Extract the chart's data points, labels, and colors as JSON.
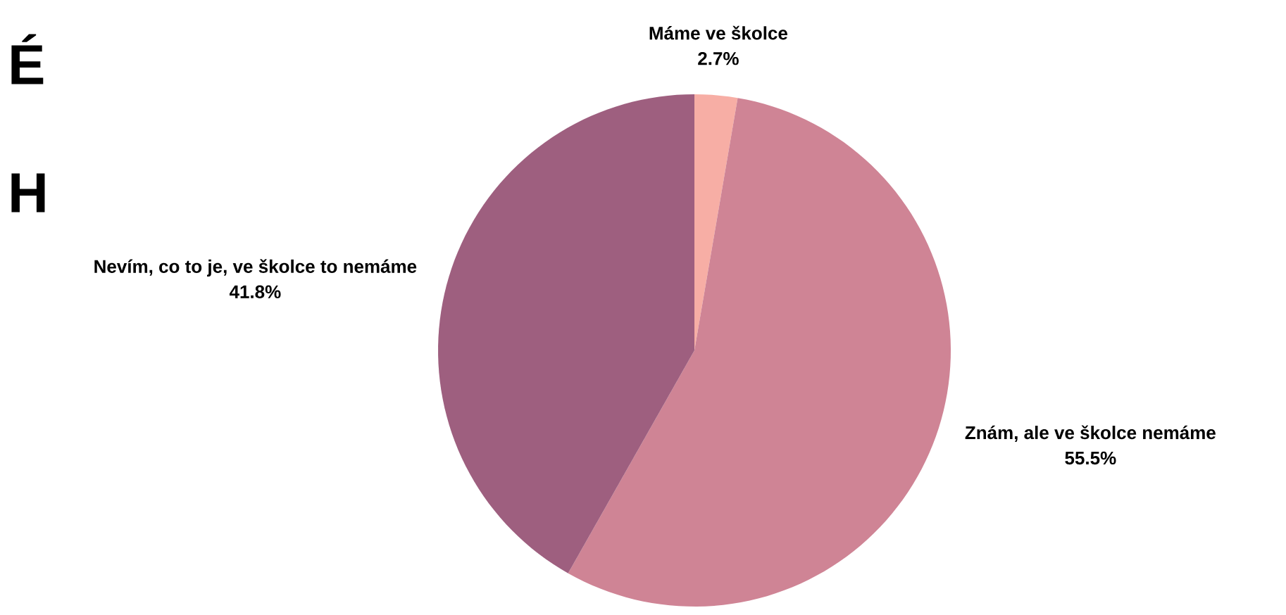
{
  "chart_data": {
    "type": "pie",
    "annotations": [
      "É",
      "H"
    ],
    "categories": [
      "Máme ve školce",
      "Znám, ale ve školce nemáme",
      "Nevím, co to je, ve školce to nemáme"
    ],
    "values": [
      2.7,
      55.5,
      41.8
    ],
    "value_labels": [
      "2.7%",
      "55.5%",
      "41.8%"
    ],
    "colors": [
      "#f7aea5",
      "#cf8495",
      "#9e5f7f"
    ]
  }
}
